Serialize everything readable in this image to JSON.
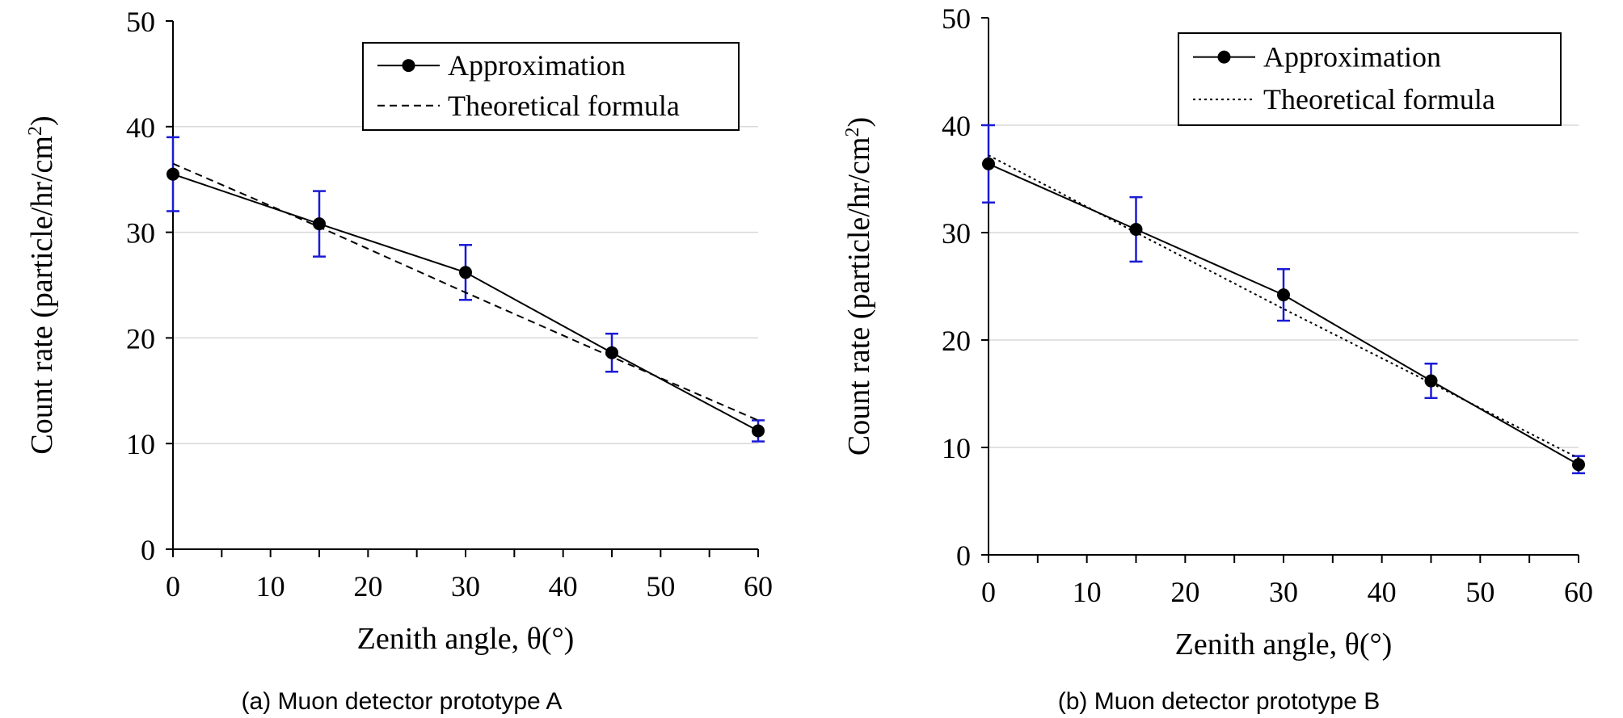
{
  "chart_data": [
    {
      "type": "line",
      "caption": "(a) Muon detector prototype A",
      "xlabel": "Zenith angle, θ(°)",
      "ylabel": "Count rate (particle/hr/cm",
      "ylabel_sup": "2",
      "ylabel_close": ")",
      "xlim": [
        0,
        60
      ],
      "ylim": [
        0,
        50
      ],
      "x_ticks": [
        0,
        10,
        20,
        30,
        40,
        50,
        60
      ],
      "y_ticks": [
        0,
        10,
        20,
        30,
        40,
        50
      ],
      "grid": "horizontal",
      "legend_position": "top-right",
      "series": [
        {
          "name": "Approximation",
          "style": "solid-markers",
          "x": [
            0,
            15,
            30,
            45,
            60
          ],
          "y": [
            35.5,
            30.8,
            26.2,
            18.6,
            11.2
          ],
          "err": [
            3.5,
            3.1,
            2.6,
            1.8,
            1.0
          ]
        },
        {
          "name": "Theoretical formula",
          "style": "dashed",
          "x": [
            0,
            15,
            30,
            45,
            60
          ],
          "y": [
            36.5,
            30.5,
            24.3,
            18.2,
            12.2
          ]
        }
      ]
    },
    {
      "type": "line",
      "caption": "(b) Muon detector prototype B",
      "xlabel": "Zenith angle, θ(°)",
      "ylabel": "Count rate (particle/hr/cm",
      "ylabel_sup": "2",
      "ylabel_close": ")",
      "xlim": [
        0,
        60
      ],
      "ylim": [
        0,
        50
      ],
      "x_ticks": [
        0,
        10,
        20,
        30,
        40,
        50,
        60
      ],
      "y_ticks": [
        0,
        10,
        20,
        30,
        40,
        50
      ],
      "grid": "horizontal",
      "legend_position": "top-right",
      "series": [
        {
          "name": "Approximation",
          "style": "solid-markers",
          "x": [
            0,
            15,
            30,
            45,
            60
          ],
          "y": [
            36.4,
            30.3,
            24.2,
            16.2,
            8.4
          ],
          "err": [
            3.6,
            3.0,
            2.4,
            1.6,
            0.8
          ]
        },
        {
          "name": "Theoretical formula",
          "style": "dotted",
          "x": [
            0,
            15,
            30,
            45,
            60
          ],
          "y": [
            37.2,
            30.0,
            22.9,
            16.0,
            9.0
          ]
        }
      ]
    }
  ],
  "colors": {
    "line": "#000000",
    "error_bar": "#1a1ad6",
    "grid": "#d9d9d9",
    "axis": "#000000"
  }
}
